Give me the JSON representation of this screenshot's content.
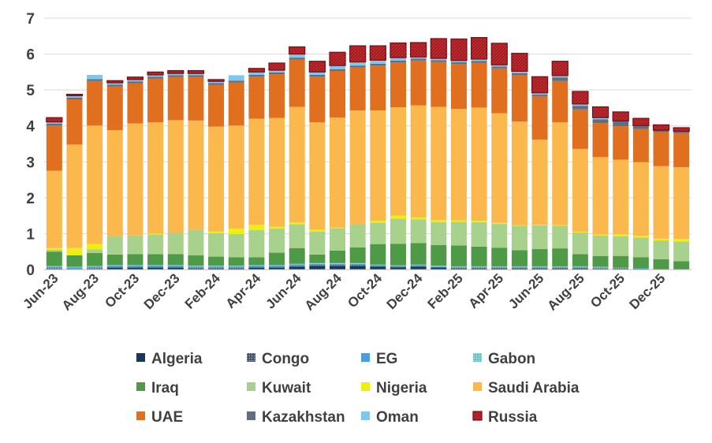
{
  "chart_data": {
    "type": "bar",
    "stacked": true,
    "title": "",
    "xlabel": "",
    "ylabel": "",
    "ylim": [
      0,
      7
    ],
    "yticks": [
      0,
      1,
      2,
      3,
      4,
      5,
      6,
      7
    ],
    "grid": true,
    "legend_position": "bottom",
    "categories": [
      "Jun-23",
      "Jul-23",
      "Aug-23",
      "Sep-23",
      "Oct-23",
      "Nov-23",
      "Dec-23",
      "Jan-24",
      "Feb-24",
      "Mar-24",
      "Apr-24",
      "May-24",
      "Jun-24",
      "Jul-24",
      "Aug-24",
      "Sep-24",
      "Oct-24",
      "Nov-24",
      "Dec-24",
      "Jan-25",
      "Feb-25",
      "Mar-25",
      "Apr-25",
      "May-25",
      "Jun-25",
      "Jul-25",
      "Aug-25",
      "Sep-25",
      "Oct-25",
      "Nov-25",
      "Dec-25",
      "Jan-26"
    ],
    "x_tick_labels": [
      "Jun-23",
      "",
      "Aug-23",
      "",
      "Oct-23",
      "",
      "Dec-23",
      "",
      "Feb-24",
      "",
      "Apr-24",
      "",
      "Jun-24",
      "",
      "Aug-24",
      "",
      "Oct-24",
      "",
      "Dec-24",
      "",
      "Feb-25",
      "",
      "Apr-25",
      "",
      "Jun-25",
      "",
      "Aug-25",
      "",
      "Oct-25",
      "",
      "Dec-25",
      ""
    ],
    "series": [
      {
        "name": "Algeria",
        "color": "#17375e",
        "pattern": "none",
        "values": [
          0.02,
          0.0,
          0.02,
          0.05,
          0.05,
          0.05,
          0.05,
          0.03,
          0.03,
          0.03,
          0.05,
          0.05,
          0.08,
          0.1,
          0.1,
          0.1,
          0.08,
          0.06,
          0.08,
          0.05,
          0.03,
          0.03,
          0.03,
          0.03,
          0.03,
          0.03,
          0.03,
          0.02,
          0.02,
          0.02,
          0.0,
          0.0
        ]
      },
      {
        "name": "Congo",
        "color": "#44546a",
        "pattern": "dots",
        "values": [
          0.02,
          0.02,
          0.02,
          0.02,
          0.02,
          0.02,
          0.02,
          0.02,
          0.02,
          0.02,
          0.02,
          0.02,
          0.02,
          0.02,
          0.02,
          0.02,
          0.02,
          0.02,
          0.02,
          0.02,
          0.02,
          0.02,
          0.02,
          0.02,
          0.02,
          0.02,
          0.02,
          0.02,
          0.02,
          0.0,
          0.0,
          0.0
        ]
      },
      {
        "name": "EG",
        "color": "#4a9fd8",
        "pattern": "none",
        "values": [
          0.04,
          0.04,
          0.04,
          0.04,
          0.04,
          0.04,
          0.04,
          0.04,
          0.04,
          0.04,
          0.04,
          0.04,
          0.04,
          0.04,
          0.04,
          0.04,
          0.02,
          0.02,
          0.02,
          0.02,
          0.02,
          0.02,
          0.02,
          0.02,
          0.02,
          0.02,
          0.02,
          0.02,
          0.02,
          0.02,
          0.0,
          0.0
        ]
      },
      {
        "name": "Gabon",
        "color": "#70c4c4",
        "pattern": "dots",
        "values": [
          0.02,
          0.02,
          0.02,
          0.02,
          0.02,
          0.02,
          0.02,
          0.02,
          0.02,
          0.02,
          0.02,
          0.02,
          0.02,
          0.02,
          0.02,
          0.02,
          0.02,
          0.02,
          0.02,
          0.02,
          0.02,
          0.02,
          0.02,
          0.02,
          0.02,
          0.02,
          0.02,
          0.02,
          0.0,
          0.0,
          0.0,
          0.0
        ]
      },
      {
        "name": "Iraq",
        "color": "#4e9a47",
        "pattern": "none",
        "values": [
          0.4,
          0.32,
          0.36,
          0.29,
          0.3,
          0.3,
          0.3,
          0.29,
          0.25,
          0.23,
          0.21,
          0.34,
          0.44,
          0.24,
          0.35,
          0.44,
          0.57,
          0.6,
          0.6,
          0.57,
          0.58,
          0.55,
          0.52,
          0.45,
          0.48,
          0.5,
          0.34,
          0.3,
          0.32,
          0.3,
          0.29,
          0.23
        ]
      },
      {
        "name": "Kuwait",
        "color": "#a9d18e",
        "pattern": "none",
        "values": [
          0.05,
          0.0,
          0.1,
          0.5,
          0.52,
          0.55,
          0.6,
          0.7,
          0.65,
          0.65,
          0.76,
          0.67,
          0.66,
          0.64,
          0.62,
          0.64,
          0.6,
          0.7,
          0.66,
          0.64,
          0.66,
          0.68,
          0.66,
          0.68,
          0.66,
          0.63,
          0.6,
          0.57,
          0.55,
          0.55,
          0.52,
          0.55
        ]
      },
      {
        "name": "Nigeria",
        "color": "#eeee11",
        "pattern": "none",
        "values": [
          0.05,
          0.2,
          0.15,
          0.0,
          0.0,
          0.02,
          0.0,
          0.0,
          0.05,
          0.15,
          0.15,
          0.05,
          0.05,
          0.05,
          0.02,
          0.0,
          0.05,
          0.08,
          0.05,
          0.06,
          0.04,
          0.04,
          0.03,
          0.02,
          0.02,
          0.02,
          0.02,
          0.02,
          0.05,
          0.05,
          0.05,
          0.07
        ]
      },
      {
        "name": "Saudi Arabia",
        "color": "#fbb84d",
        "pattern": "none",
        "values": [
          2.15,
          2.88,
          3.3,
          2.96,
          3.12,
          3.1,
          3.13,
          3.05,
          2.92,
          2.87,
          2.95,
          3.03,
          3.22,
          2.99,
          3.06,
          3.17,
          3.07,
          3.02,
          3.12,
          3.15,
          3.1,
          3.15,
          3.05,
          2.88,
          2.37,
          2.86,
          2.31,
          2.16,
          2.08,
          2.05,
          2.02,
          2.0
        ]
      },
      {
        "name": "UAE",
        "color": "#e06f1f",
        "pattern": "none",
        "values": [
          1.26,
          1.26,
          1.24,
          1.22,
          1.12,
          1.22,
          1.2,
          1.21,
          1.16,
          1.2,
          1.17,
          1.22,
          1.32,
          1.27,
          1.3,
          1.2,
          1.25,
          1.25,
          1.25,
          1.25,
          1.25,
          1.25,
          1.25,
          1.3,
          1.2,
          1.15,
          1.1,
          0.95,
          0.93,
          0.92,
          0.95,
          0.95
        ]
      },
      {
        "name": "Kazakhstan",
        "color": "#5f6e80",
        "pattern": "none",
        "values": [
          0.05,
          0.05,
          0.05,
          0.05,
          0.05,
          0.05,
          0.05,
          0.05,
          0.05,
          0.05,
          0.05,
          0.05,
          0.05,
          0.05,
          0.05,
          0.05,
          0.05,
          0.05,
          0.05,
          0.05,
          0.05,
          0.05,
          0.05,
          0.05,
          0.05,
          0.1,
          0.1,
          0.1,
          0.15,
          0.1,
          0.05,
          0.05
        ]
      },
      {
        "name": "Oman",
        "color": "#7ec8ef",
        "pattern": "none",
        "values": [
          0.05,
          0.05,
          0.12,
          0.05,
          0.05,
          0.05,
          0.05,
          0.05,
          0.05,
          0.15,
          0.08,
          0.06,
          0.1,
          0.08,
          0.1,
          0.1,
          0.1,
          0.08,
          0.05,
          0.05,
          0.05,
          0.05,
          0.05,
          0.05,
          0.05,
          0.05,
          0.05,
          0.05,
          0.0,
          0.0,
          0.0,
          0.0
        ]
      },
      {
        "name": "Russia",
        "color": "#a31a1f",
        "pattern": "stripes",
        "values": [
          0.12,
          0.04,
          0.0,
          0.06,
          0.07,
          0.08,
          0.08,
          0.08,
          0.05,
          0.0,
          0.1,
          0.2,
          0.2,
          0.3,
          0.37,
          0.45,
          0.4,
          0.41,
          0.4,
          0.55,
          0.6,
          0.6,
          0.6,
          0.5,
          0.45,
          0.4,
          0.35,
          0.3,
          0.25,
          0.2,
          0.15,
          0.1
        ]
      }
    ]
  }
}
